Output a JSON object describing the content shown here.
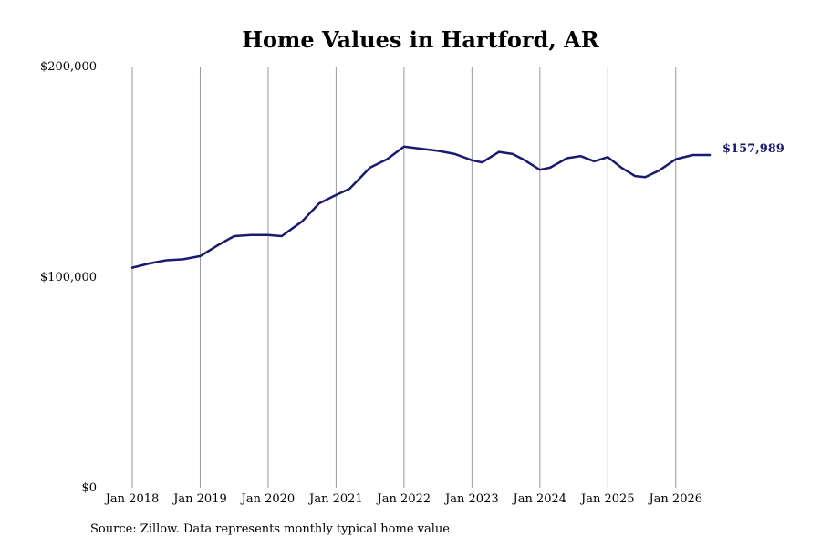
{
  "chart_data": {
    "type": "line",
    "title": "Home Values in Hartford, AR",
    "xlabel": "",
    "ylabel": "",
    "ylim": [
      0,
      200000
    ],
    "y_ticks": [
      {
        "value": 0,
        "label": "$0"
      },
      {
        "value": 100000,
        "label": "$100,000"
      },
      {
        "value": 200000,
        "label": "$200,000"
      }
    ],
    "x_ticks": [
      {
        "value": 2018,
        "label": "Jan 2018"
      },
      {
        "value": 2019,
        "label": "Jan 2019"
      },
      {
        "value": 2020,
        "label": "Jan 2020"
      },
      {
        "value": 2021,
        "label": "Jan 2021"
      },
      {
        "value": 2022,
        "label": "Jan 2022"
      },
      {
        "value": 2023,
        "label": "Jan 2023"
      },
      {
        "value": 2024,
        "label": "Jan 2024"
      },
      {
        "value": 2025,
        "label": "Jan 2025"
      },
      {
        "value": 2026,
        "label": "Jan 2026"
      }
    ],
    "xlim": [
      2018,
      2026.5
    ],
    "grid": "vertical",
    "series": [
      {
        "name": "",
        "color": "#1a1a6e",
        "points": [
          [
            2018.0,
            104500
          ],
          [
            2018.25,
            106500
          ],
          [
            2018.5,
            108000
          ],
          [
            2018.75,
            108500
          ],
          [
            2019.0,
            110000
          ],
          [
            2019.25,
            115000
          ],
          [
            2019.5,
            119500
          ],
          [
            2019.75,
            120000
          ],
          [
            2020.0,
            120000
          ],
          [
            2020.2,
            119500
          ],
          [
            2020.5,
            126500
          ],
          [
            2020.75,
            135000
          ],
          [
            2021.0,
            139000
          ],
          [
            2021.2,
            142000
          ],
          [
            2021.5,
            152000
          ],
          [
            2021.75,
            156000
          ],
          [
            2022.0,
            162000
          ],
          [
            2022.25,
            161000
          ],
          [
            2022.5,
            160000
          ],
          [
            2022.75,
            158500
          ],
          [
            2023.0,
            155500
          ],
          [
            2023.15,
            154500
          ],
          [
            2023.4,
            159500
          ],
          [
            2023.6,
            158500
          ],
          [
            2023.75,
            156000
          ],
          [
            2024.0,
            151000
          ],
          [
            2024.15,
            152000
          ],
          [
            2024.4,
            156500
          ],
          [
            2024.6,
            157500
          ],
          [
            2024.8,
            155000
          ],
          [
            2025.0,
            157000
          ],
          [
            2025.2,
            152000
          ],
          [
            2025.4,
            148000
          ],
          [
            2025.55,
            147500
          ],
          [
            2025.75,
            150500
          ],
          [
            2026.0,
            156000
          ],
          [
            2026.25,
            158000
          ],
          [
            2026.5,
            157989
          ]
        ]
      }
    ],
    "end_label": "$157,989"
  },
  "source_text": "Source: Zillow. Data represents monthly typical home value",
  "colors": {
    "line": "#1a1a6e",
    "grid": "#999999",
    "end_label": "#1a1a6e"
  }
}
